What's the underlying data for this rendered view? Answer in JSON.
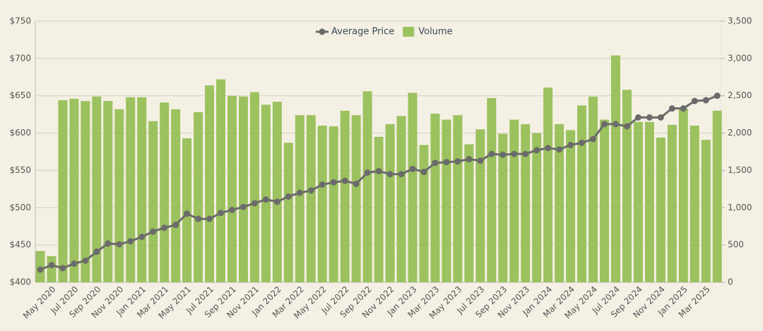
{
  "chart_data": {
    "type": "bar_line",
    "categories": [
      "Apr 2020",
      "May 2020",
      "Jun 2020",
      "Jul 2020",
      "Aug 2020",
      "Sep 2020",
      "Oct 2020",
      "Nov 2020",
      "Dec 2020",
      "Jan 2021",
      "Feb 2021",
      "Mar 2021",
      "Apr 2021",
      "May 2021",
      "Jun 2021",
      "Jul 2021",
      "Aug 2021",
      "Sep 2021",
      "Oct 2021",
      "Nov 2021",
      "Dec 2021",
      "Jan 2022",
      "Feb 2022",
      "Mar 2022",
      "Apr 2022",
      "May 2022",
      "Jun 2022",
      "Jul 2022",
      "Aug 2022",
      "Sep 2022",
      "Oct 2022",
      "Nov 2022",
      "Dec 2022",
      "Jan 2023",
      "Feb 2023",
      "Mar 2023",
      "Apr 2023",
      "May 2023",
      "Jun 2023",
      "Jul 2023",
      "Aug 2023",
      "Sep 2023",
      "Oct 2023",
      "Nov 2023",
      "Dec 2023",
      "Jan 2024",
      "Feb 2024",
      "Mar 2024",
      "Apr 2024",
      "May 2024",
      "Jun 2024",
      "Jul 2024",
      "Aug 2024",
      "Sep 2024",
      "Oct 2024",
      "Nov 2024",
      "Dec 2024",
      "Jan 2025",
      "Feb 2025",
      "Mar 2025",
      "Apr 2025"
    ],
    "category_labels": [
      null,
      "May 2020",
      null,
      "Jul 2020",
      null,
      "Sep 2020",
      null,
      "Nov 2020",
      null,
      "Jan 2021",
      null,
      "Mar 2021",
      null,
      "May 2021",
      null,
      "Jul 2021",
      null,
      "Sep 2021",
      null,
      "Nov 2021",
      null,
      "Jan 2022",
      null,
      "Mar 2022",
      null,
      "May 2022",
      null,
      "Jul 2022",
      null,
      "Sep 2022",
      null,
      "Nov 2022",
      null,
      "Jan 2023",
      null,
      "Mar 2023",
      null,
      "May 2023",
      null,
      "Jul 2023",
      null,
      "Sep 2023",
      null,
      "Nov 2023",
      null,
      "Jan 2024",
      null,
      "Mar 2024",
      null,
      "May 2024",
      null,
      "Jul 2024",
      null,
      "Sep 2024",
      null,
      "Nov 2024",
      null,
      "Jan 2025",
      null,
      "Mar 2025",
      null
    ],
    "series": [
      {
        "name": "Average Price",
        "type": "line",
        "color": "#6b6b6b",
        "values": [
          417,
          423,
          419,
          425,
          429,
          441,
          452,
          451,
          455,
          461,
          468,
          473,
          477,
          492,
          485,
          485,
          493,
          497,
          501,
          506,
          511,
          508,
          515,
          520,
          523,
          531,
          534,
          536,
          532,
          547,
          549,
          545,
          545,
          552,
          548,
          560,
          561,
          562,
          565,
          563,
          572,
          571,
          572,
          572,
          577,
          580,
          578,
          584,
          587,
          592,
          612,
          612,
          609,
          621,
          621,
          621,
          633,
          633,
          643,
          644,
          650
        ]
      },
      {
        "name": "Volume",
        "type": "bar",
        "axis": "y2",
        "color": "#9bc25e",
        "values": [
          420,
          350,
          2440,
          2460,
          2430,
          2490,
          2430,
          2320,
          2480,
          2480,
          2160,
          2410,
          2320,
          1930,
          2280,
          2640,
          2720,
          2500,
          2490,
          2550,
          2380,
          2420,
          1870,
          2240,
          2240,
          2100,
          2090,
          2300,
          2240,
          2560,
          1950,
          2120,
          2230,
          2540,
          1840,
          2260,
          2180,
          2240,
          1850,
          2050,
          2470,
          1990,
          2180,
          2120,
          2000,
          2610,
          2120,
          2040,
          2370,
          2490,
          2180,
          3040,
          2580,
          2150,
          2150,
          1940,
          2110,
          2330,
          2100,
          1910,
          2300
        ]
      }
    ],
    "ylim": [
      400,
      750
    ],
    "yticks": [
      {
        "value": 400,
        "label": "$400"
      },
      {
        "value": 450,
        "label": "$450"
      },
      {
        "value": 500,
        "label": "$500"
      },
      {
        "value": 550,
        "label": "$550"
      },
      {
        "value": 600,
        "label": "$600"
      },
      {
        "value": 650,
        "label": "$650"
      },
      {
        "value": 700,
        "label": "$700"
      },
      {
        "value": 750,
        "label": "$750"
      }
    ],
    "y2lim": [
      0,
      3500
    ],
    "y2ticks": [
      0,
      500,
      {
        "value": 1000,
        "label": "1,000"
      },
      {
        "value": 1500,
        "label": "1,500"
      },
      {
        "value": 2000,
        "label": "2,000"
      },
      {
        "value": 2500,
        "label": "2,500"
      },
      {
        "value": 3000,
        "label": "3,000"
      },
      {
        "value": 3500,
        "label": "3,500"
      }
    ],
    "grid": true,
    "legend": "top"
  }
}
